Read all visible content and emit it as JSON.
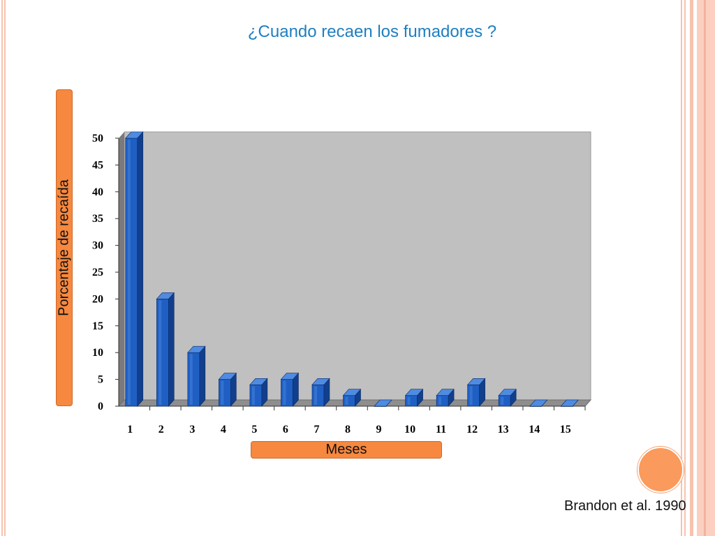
{
  "slide": {
    "title": "¿Cuando recaen los fumadores ?",
    "citation": "Brandon et al. 1990",
    "accent_color": "#f6883f",
    "title_color": "#1f7fbf"
  },
  "chart_data": {
    "type": "bar",
    "title": "¿Cuando recaen los fumadores ?",
    "xlabel": "Meses",
    "ylabel": "Porcentaje de recaída",
    "categories": [
      "1",
      "2",
      "3",
      "4",
      "5",
      "6",
      "7",
      "8",
      "9",
      "10",
      "11",
      "12",
      "13",
      "14",
      "15"
    ],
    "values": [
      50,
      20,
      10,
      5,
      4,
      5,
      4,
      2,
      0,
      2,
      2,
      4,
      2,
      0,
      0
    ],
    "ylim": [
      0,
      50
    ],
    "yticks": [
      0,
      5,
      10,
      15,
      20,
      25,
      30,
      35,
      40,
      45,
      50
    ],
    "grid": false,
    "legend": "none",
    "bar_color": "#1f5fc4",
    "plot_background": "#c0c0c0"
  }
}
